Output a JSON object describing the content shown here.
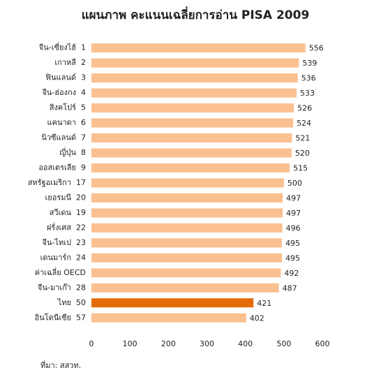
{
  "chart_data": {
    "type": "hbar",
    "title": "แผนภาพ   คะแนนเฉลี่ยการอ่าน PISA 2009",
    "categories": [
      "จีน-เซี่ยงไฮ้  1",
      "เกาหลี  2",
      "ฟินแลนด์  3",
      "จีน-ฮ่องกง  4",
      "สิงคโปร์  5",
      "แคนาดา  6",
      "นิวซีแลนด์  7",
      "ญี่ปุ่น  8",
      "ออสเตรเลีย  9",
      "สหรัฐอเมริกา  17",
      "เยอรมนี  20",
      "สวีเดน  19",
      "ฝรั่งเศส  22",
      "จีน-ไทเป  23",
      "เดนมาร์ก  24",
      "ค่าเฉลี่ย OECD",
      "จีน-มาเก๊า  28",
      "ไทย  50",
      "อินโดนีเซีย  57"
    ],
    "values": [
      556,
      539,
      536,
      533,
      526,
      524,
      521,
      520,
      515,
      500,
      497,
      497,
      496,
      495,
      495,
      492,
      487,
      421,
      402
    ],
    "colors": [
      "#fac090",
      "#fac090",
      "#fac090",
      "#fac090",
      "#fac090",
      "#fac090",
      "#fac090",
      "#fac090",
      "#fac090",
      "#fac090",
      "#fac090",
      "#fac090",
      "#fac090",
      "#fac090",
      "#fac090",
      "#fac090",
      "#fac090",
      "#e36c09",
      "#fac090"
    ],
    "xlim": [
      0,
      600
    ],
    "xticks": [
      0,
      100,
      200,
      300,
      400,
      500,
      600
    ],
    "source": "ที่มา: สสวท."
  }
}
